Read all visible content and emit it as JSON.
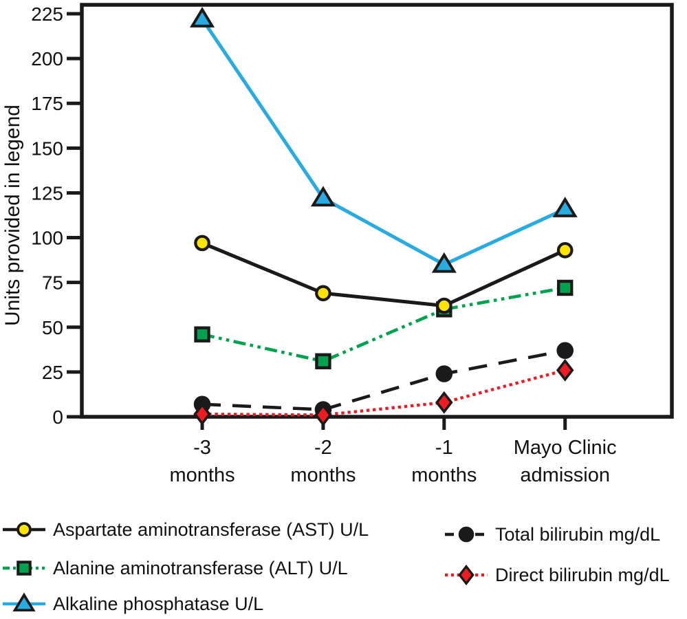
{
  "page": {
    "background": "#ffffff"
  },
  "chart_data": {
    "type": "line",
    "title": "",
    "xlabel": "",
    "ylabel": "Units provided in legend",
    "ylim": [
      0,
      225
    ],
    "yticks": [
      0,
      25,
      50,
      75,
      100,
      125,
      150,
      175,
      200,
      225
    ],
    "grid": false,
    "legend_position": "bottom",
    "axis_color": "#1a1a1a",
    "text_color": "#111111",
    "categories": [
      {
        "line1": "-3",
        "line2": "months"
      },
      {
        "line1": "-2",
        "line2": "months"
      },
      {
        "line1": "-1",
        "line2": "months"
      },
      {
        "line1": "Mayo Clinic",
        "line2": "admission"
      }
    ],
    "series": [
      {
        "label": "Aspartate aminotransferase (AST) U/L",
        "values": [
          97,
          69,
          62,
          93
        ],
        "line_color": "#1a1a1a",
        "line_style": "solid",
        "marker": "circle",
        "marker_fill": "#ffe400",
        "marker_stroke": "#1a1a1a",
        "legend_column": 1,
        "legend_row": 1
      },
      {
        "label": "Alanine aminotransferase (ALT) U/L",
        "values": [
          46,
          31,
          60,
          72
        ],
        "line_color": "#00a24f",
        "line_style": "dash-dot-dot",
        "marker": "square",
        "marker_fill": "#00a24f",
        "marker_stroke": "#1a1a1a",
        "legend_column": 1,
        "legend_row": 2
      },
      {
        "label": "Alkaline phosphatase U/L",
        "values": [
          222,
          122,
          85,
          116
        ],
        "line_color": "#29abe2",
        "line_style": "solid",
        "marker": "triangle",
        "marker_fill": "#29abe2",
        "marker_stroke": "#1a1a1a",
        "legend_column": 1,
        "legend_row": 3
      },
      {
        "label": "Total bilirubin mg/dL",
        "values": [
          7,
          4,
          24,
          37
        ],
        "line_color": "#1a1a1a",
        "line_style": "dashed",
        "marker": "dot",
        "marker_fill": "#1a1a1a",
        "marker_stroke": "#1a1a1a",
        "legend_column": 2,
        "legend_row": 1
      },
      {
        "label": "Direct bilirubin mg/dL",
        "values": [
          1.5,
          1,
          8,
          26
        ],
        "line_color": "#ed1c24",
        "line_style": "dotted",
        "marker": "diamond",
        "marker_fill": "#ed1c24",
        "marker_stroke": "#1a1a1a",
        "legend_column": 2,
        "legend_row": 2
      }
    ]
  }
}
